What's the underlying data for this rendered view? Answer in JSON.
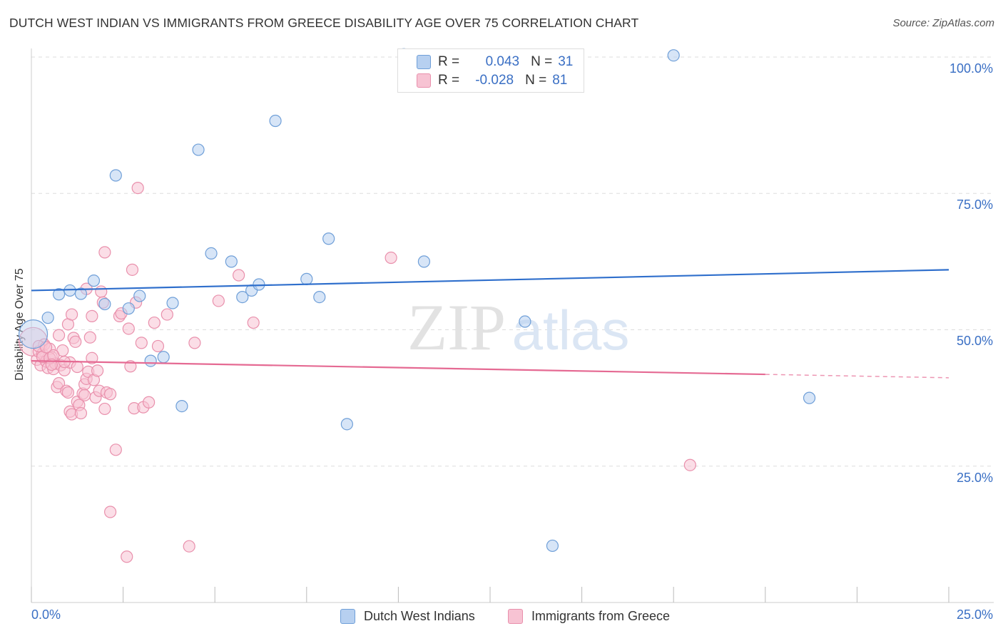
{
  "title": "DUTCH WEST INDIAN VS IMMIGRANTS FROM GREECE DISABILITY AGE OVER 75 CORRELATION CHART",
  "source": "Source: ZipAtlas.com",
  "watermark": {
    "zip": "ZIP",
    "atlas": "atlas"
  },
  "stats": {
    "r_label": "R =",
    "n_label": "N =",
    "blue": {
      "r": "0.043",
      "n": "31"
    },
    "pink": {
      "r": "-0.028",
      "n": "81"
    }
  },
  "legend": {
    "blue_label": "Dutch West Indians",
    "pink_label": "Immigrants from Greece"
  },
  "colors": {
    "blue_fill": "#b7d0f0",
    "blue_stroke": "#6f9fd8",
    "blue_line": "#2f6fcc",
    "pink_fill": "#f7c3d3",
    "pink_stroke": "#e990ac",
    "pink_line": "#e56a93",
    "tick_text": "#3a6fc4",
    "grid": "#dddddd"
  },
  "chart_data": {
    "type": "scatter",
    "title": "DUTCH WEST INDIAN VS IMMIGRANTS FROM GREECE DISABILITY AGE OVER 75 CORRELATION CHART",
    "xlabel": "",
    "ylabel": "Disability Age Over 75",
    "xlim": [
      0,
      25
    ],
    "ylim": [
      0,
      100
    ],
    "x_tick_labels": [
      "0.0%",
      "25.0%"
    ],
    "y_ticks": [
      25,
      50,
      75,
      100
    ],
    "y_tick_labels": [
      "25.0%",
      "50.0%",
      "75.0%",
      "100.0%"
    ],
    "series": [
      {
        "name": "Dutch West Indians",
        "color": "blue",
        "r": 0.043,
        "n": 31,
        "trend": {
          "x": [
            0,
            25
          ],
          "y": [
            57.2,
            61.0
          ],
          "dashed_from": null
        },
        "points": [
          {
            "x": 0.05,
            "y": 49.2,
            "big": true
          },
          {
            "x": 0.45,
            "y": 52.2
          },
          {
            "x": 0.75,
            "y": 56.5
          },
          {
            "x": 1.05,
            "y": 57.2
          },
          {
            "x": 1.35,
            "y": 56.6
          },
          {
            "x": 1.7,
            "y": 59.0
          },
          {
            "x": 2.0,
            "y": 54.7
          },
          {
            "x": 2.3,
            "y": 78.3
          },
          {
            "x": 2.65,
            "y": 53.9
          },
          {
            "x": 2.95,
            "y": 56.2
          },
          {
            "x": 3.25,
            "y": 44.3
          },
          {
            "x": 3.6,
            "y": 45.0
          },
          {
            "x": 3.85,
            "y": 54.9
          },
          {
            "x": 4.1,
            "y": 36.0
          },
          {
            "x": 4.55,
            "y": 83.0
          },
          {
            "x": 4.9,
            "y": 64.0
          },
          {
            "x": 5.45,
            "y": 62.5
          },
          {
            "x": 5.75,
            "y": 56.0
          },
          {
            "x": 6.0,
            "y": 57.2
          },
          {
            "x": 6.2,
            "y": 58.3
          },
          {
            "x": 6.65,
            "y": 88.3
          },
          {
            "x": 7.5,
            "y": 59.3
          },
          {
            "x": 7.85,
            "y": 56.0
          },
          {
            "x": 8.1,
            "y": 66.7
          },
          {
            "x": 8.6,
            "y": 32.7
          },
          {
            "x": 10.15,
            "y": 100.5
          },
          {
            "x": 10.7,
            "y": 62.5
          },
          {
            "x": 13.45,
            "y": 51.5
          },
          {
            "x": 14.2,
            "y": 10.4
          },
          {
            "x": 17.5,
            "y": 100.3
          },
          {
            "x": 21.2,
            "y": 37.5
          }
        ]
      },
      {
        "name": "Immigrants from Greece",
        "color": "pink",
        "r": -0.028,
        "n": 81,
        "trend": {
          "x": [
            0,
            25
          ],
          "y": [
            44.3,
            41.2
          ],
          "dashed_from": 20.0
        },
        "points": [
          {
            "x": 0.05,
            "y": 47.8,
            "big": true
          },
          {
            "x": 0.15,
            "y": 44.5
          },
          {
            "x": 0.2,
            "y": 46.0
          },
          {
            "x": 0.25,
            "y": 43.5
          },
          {
            "x": 0.3,
            "y": 45.6
          },
          {
            "x": 0.35,
            "y": 47.3
          },
          {
            "x": 0.4,
            "y": 44.2
          },
          {
            "x": 0.45,
            "y": 43.0
          },
          {
            "x": 0.5,
            "y": 46.5
          },
          {
            "x": 0.55,
            "y": 45.0
          },
          {
            "x": 0.6,
            "y": 42.8
          },
          {
            "x": 0.65,
            "y": 43.8
          },
          {
            "x": 0.7,
            "y": 39.5
          },
          {
            "x": 0.75,
            "y": 40.2
          },
          {
            "x": 0.75,
            "y": 49.0
          },
          {
            "x": 0.8,
            "y": 43.5
          },
          {
            "x": 0.85,
            "y": 46.2
          },
          {
            "x": 0.9,
            "y": 42.6
          },
          {
            "x": 0.95,
            "y": 38.8
          },
          {
            "x": 1.0,
            "y": 51.0
          },
          {
            "x": 1.0,
            "y": 38.5
          },
          {
            "x": 1.05,
            "y": 44.0
          },
          {
            "x": 1.05,
            "y": 35.0
          },
          {
            "x": 1.1,
            "y": 34.5
          },
          {
            "x": 1.1,
            "y": 52.8
          },
          {
            "x": 1.15,
            "y": 48.5
          },
          {
            "x": 1.2,
            "y": 47.8
          },
          {
            "x": 1.25,
            "y": 36.8
          },
          {
            "x": 1.3,
            "y": 36.2
          },
          {
            "x": 1.35,
            "y": 34.7
          },
          {
            "x": 1.4,
            "y": 38.3
          },
          {
            "x": 1.45,
            "y": 40.0
          },
          {
            "x": 1.5,
            "y": 57.5
          },
          {
            "x": 1.5,
            "y": 41.0
          },
          {
            "x": 1.55,
            "y": 42.3
          },
          {
            "x": 1.6,
            "y": 48.6
          },
          {
            "x": 1.65,
            "y": 44.8
          },
          {
            "x": 1.65,
            "y": 52.5
          },
          {
            "x": 1.7,
            "y": 40.8
          },
          {
            "x": 1.75,
            "y": 37.6
          },
          {
            "x": 1.8,
            "y": 42.5
          },
          {
            "x": 1.85,
            "y": 38.8
          },
          {
            "x": 1.9,
            "y": 57.0
          },
          {
            "x": 1.95,
            "y": 55.0
          },
          {
            "x": 2.0,
            "y": 35.5
          },
          {
            "x": 2.0,
            "y": 64.2
          },
          {
            "x": 2.05,
            "y": 38.5
          },
          {
            "x": 2.15,
            "y": 38.2
          },
          {
            "x": 2.15,
            "y": 16.6
          },
          {
            "x": 2.3,
            "y": 28.0
          },
          {
            "x": 2.4,
            "y": 52.5
          },
          {
            "x": 2.45,
            "y": 53.0
          },
          {
            "x": 2.6,
            "y": 8.4
          },
          {
            "x": 2.65,
            "y": 50.2
          },
          {
            "x": 2.7,
            "y": 43.3
          },
          {
            "x": 2.75,
            "y": 61.0
          },
          {
            "x": 2.8,
            "y": 35.6
          },
          {
            "x": 2.85,
            "y": 55.0
          },
          {
            "x": 2.9,
            "y": 76.0
          },
          {
            "x": 3.0,
            "y": 47.6
          },
          {
            "x": 3.05,
            "y": 35.8
          },
          {
            "x": 3.2,
            "y": 36.7
          },
          {
            "x": 3.35,
            "y": 51.3
          },
          {
            "x": 3.45,
            "y": 47.0
          },
          {
            "x": 3.7,
            "y": 52.8
          },
          {
            "x": 4.3,
            "y": 10.3
          },
          {
            "x": 4.45,
            "y": 47.6
          },
          {
            "x": 5.1,
            "y": 55.3
          },
          {
            "x": 5.65,
            "y": 60.0
          },
          {
            "x": 6.05,
            "y": 51.3
          },
          {
            "x": 9.8,
            "y": 63.2
          },
          {
            "x": 17.95,
            "y": 25.2
          },
          {
            "x": 0.2,
            "y": 47.0
          },
          {
            "x": 0.3,
            "y": 45.0
          },
          {
            "x": 0.5,
            "y": 44.8
          },
          {
            "x": 0.6,
            "y": 45.3
          },
          {
            "x": 0.9,
            "y": 44.1
          },
          {
            "x": 1.25,
            "y": 43.2
          },
          {
            "x": 0.4,
            "y": 46.8
          },
          {
            "x": 0.55,
            "y": 43.6
          },
          {
            "x": 1.45,
            "y": 38.0
          }
        ]
      }
    ]
  }
}
